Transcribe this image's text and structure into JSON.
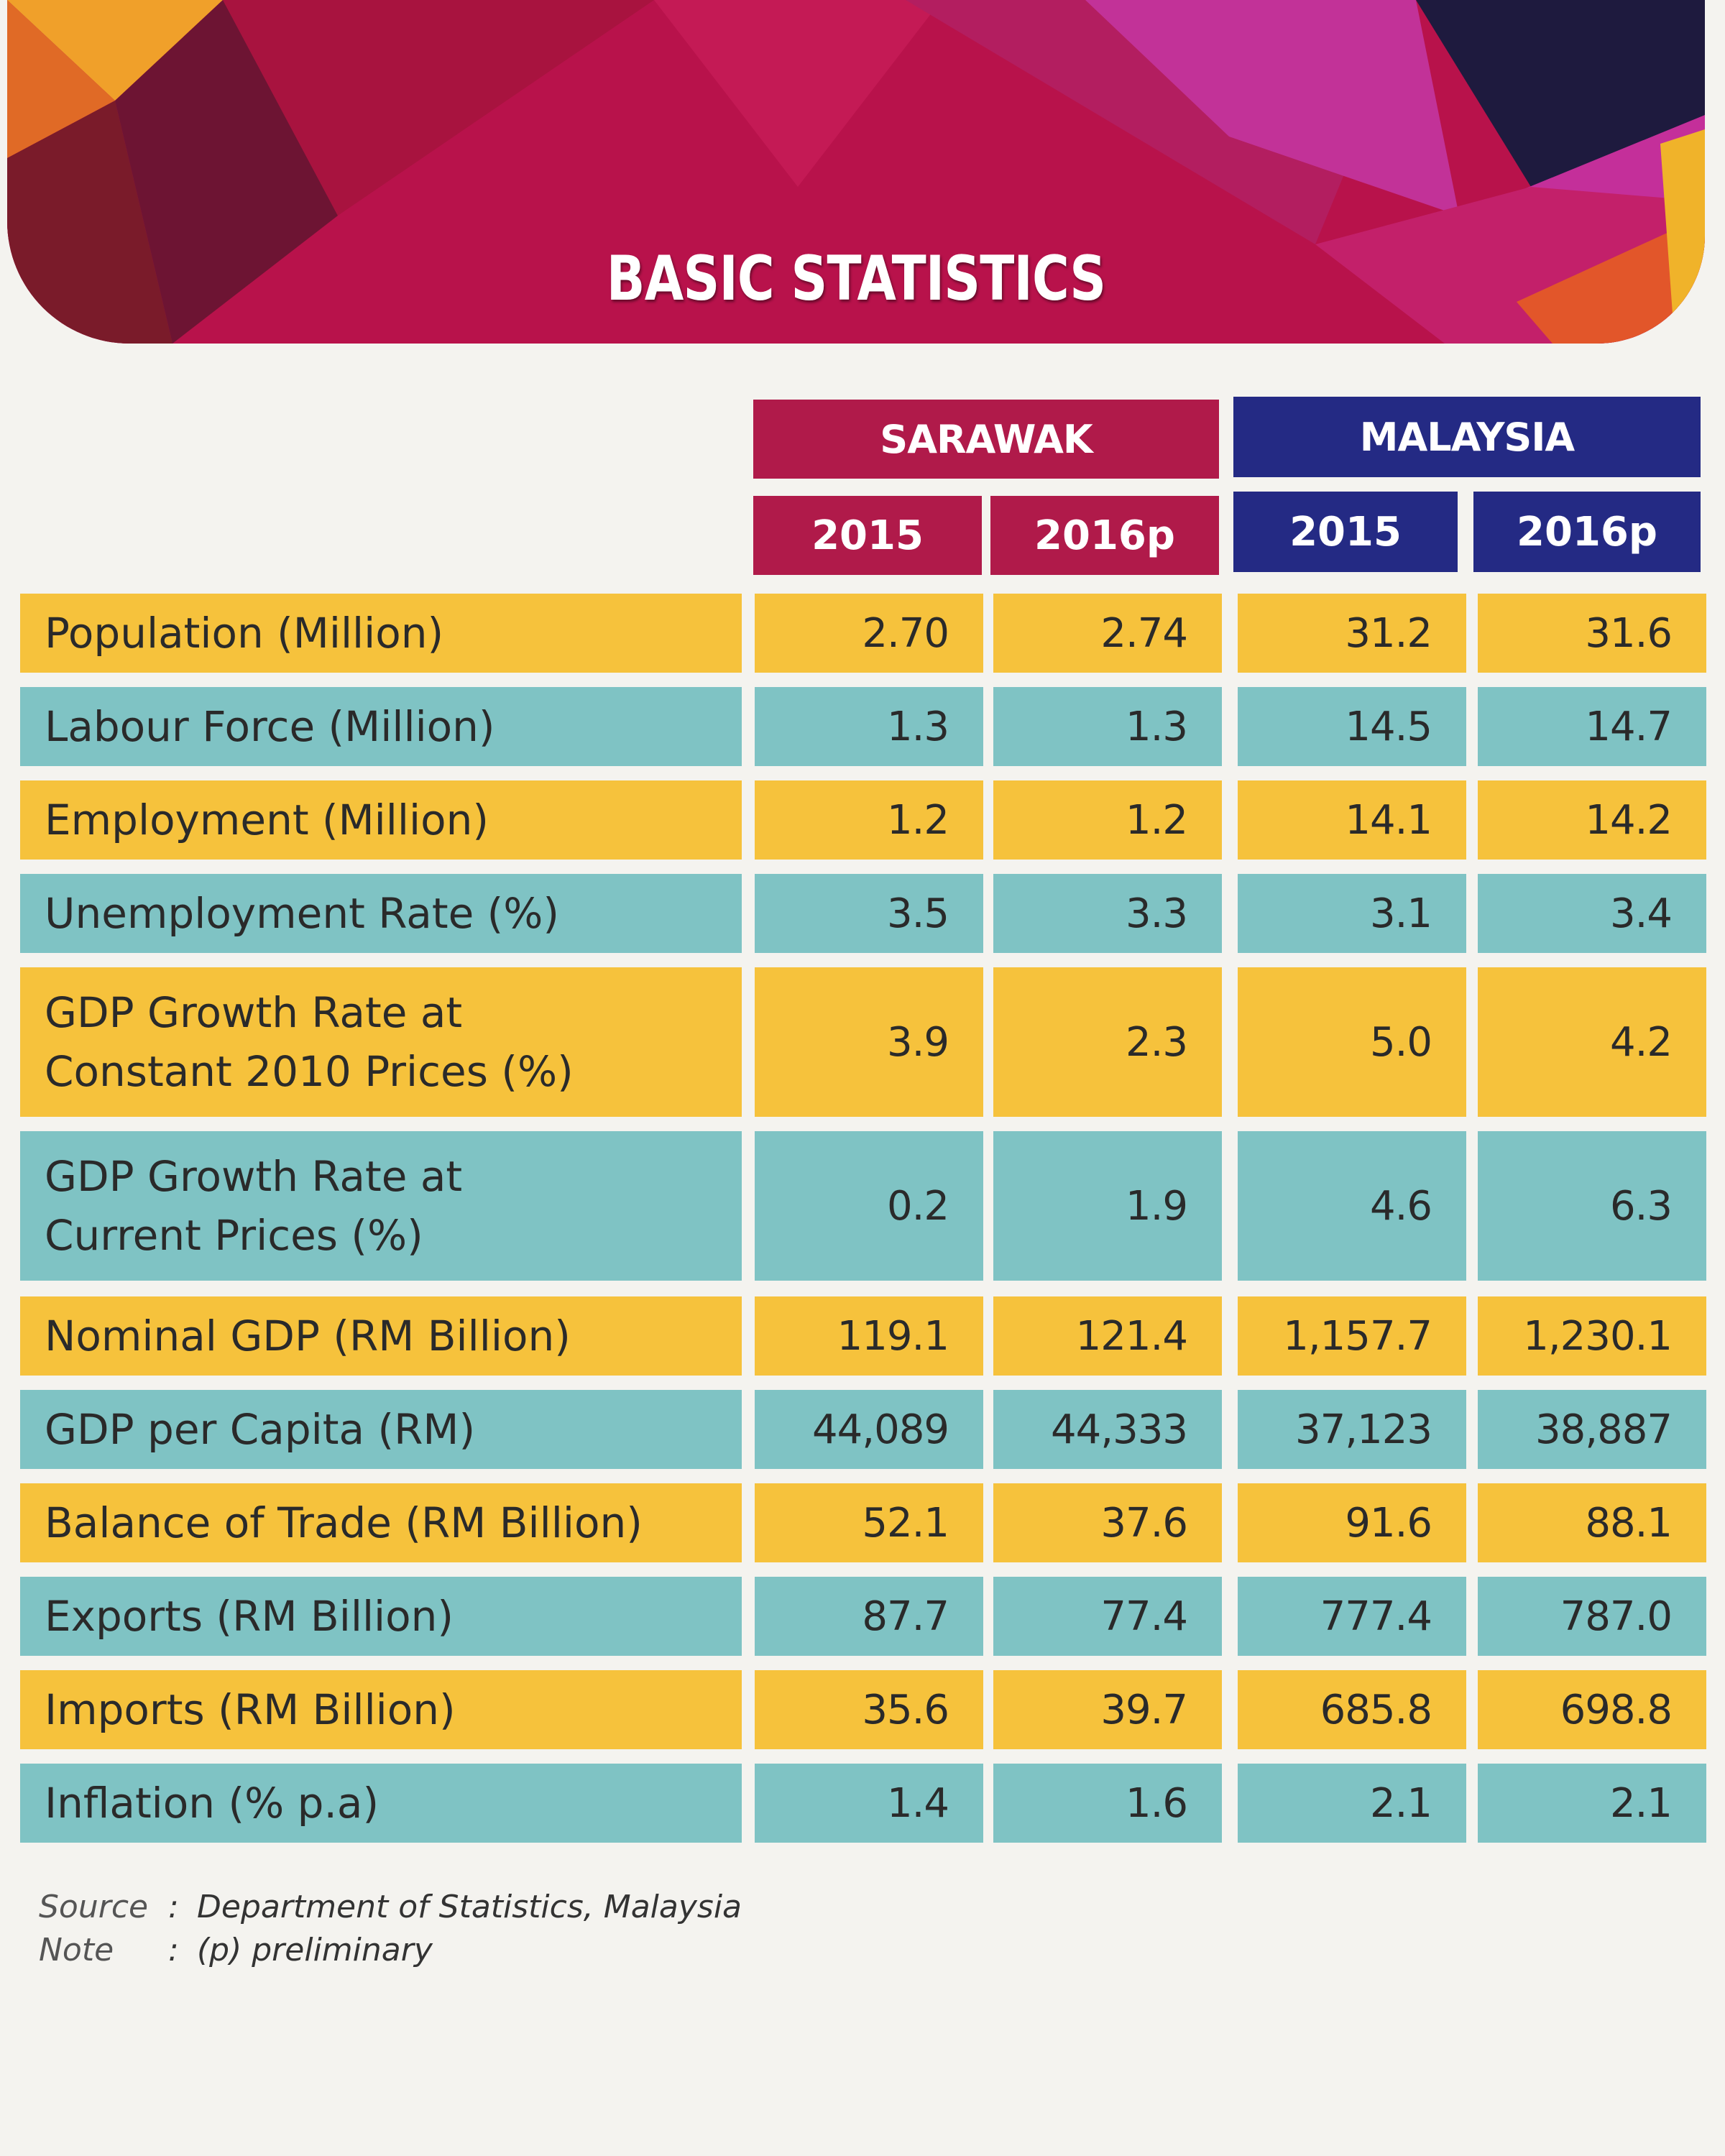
{
  "title": "BASIC STATISTICS",
  "headers": {
    "sarawak": "SARAWAK",
    "malaysia": "MALAYSIA",
    "years": [
      "2015",
      "2016p",
      "2015",
      "2016p"
    ]
  },
  "rows": [
    {
      "label": [
        "Population (Million)"
      ],
      "values": [
        "2.70",
        "2.74",
        "31.2",
        "31.6"
      ]
    },
    {
      "label": [
        "Labour Force (Million)"
      ],
      "values": [
        "1.3",
        "1.3",
        "14.5",
        "14.7"
      ]
    },
    {
      "label": [
        "Employment (Million)"
      ],
      "values": [
        "1.2",
        "1.2",
        "14.1",
        "14.2"
      ]
    },
    {
      "label": [
        "Unemployment Rate (%)"
      ],
      "values": [
        "3.5",
        "3.3",
        "3.1",
        "3.4"
      ]
    },
    {
      "label": [
        "GDP Growth Rate at",
        "Constant 2010 Prices (%)"
      ],
      "values": [
        "3.9",
        "2.3",
        "5.0",
        "4.2"
      ]
    },
    {
      "label": [
        "GDP Growth Rate at",
        "Current Prices (%)"
      ],
      "values": [
        "0.2",
        "1.9",
        "4.6",
        "6.3"
      ]
    },
    {
      "label": [
        "Nominal GDP (RM Billion)"
      ],
      "values": [
        "119.1",
        "121.4",
        "1,157.7",
        "1,230.1"
      ]
    },
    {
      "label": [
        "GDP per Capita (RM)"
      ],
      "values": [
        "44,089",
        "44,333",
        "37,123",
        "38,887"
      ]
    },
    {
      "label": [
        "Balance of Trade (RM Billion)"
      ],
      "values": [
        "52.1",
        "37.6",
        "91.6",
        "88.1"
      ]
    },
    {
      "label": [
        "Exports (RM Billion)"
      ],
      "values": [
        "87.7",
        "77.4",
        "777.4",
        "787.0"
      ]
    },
    {
      "label": [
        "Imports (RM Billion)"
      ],
      "values": [
        "35.6",
        "39.7",
        "685.8",
        "698.8"
      ]
    },
    {
      "label": [
        "Inflation (% p.a)"
      ],
      "values": [
        "1.4",
        "1.6",
        "2.1",
        "2.1"
      ]
    }
  ],
  "footnotes": {
    "source_key": "Source",
    "source_value": "Department of Statistics, Malaysia",
    "note_key": "Note",
    "note_value": "(p) preliminary"
  },
  "colors": {
    "sarawak_header": "#b01a4a",
    "malaysia_header": "#242a84",
    "row_yellow": "#f6c23c",
    "row_teal": "#7fc3c4"
  }
}
